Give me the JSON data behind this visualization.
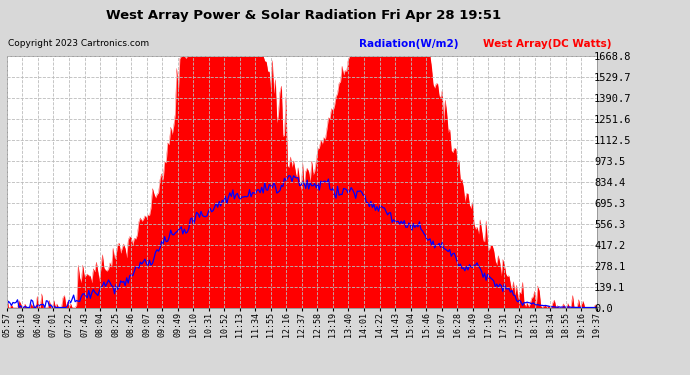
{
  "title": "West Array Power & Solar Radiation Fri Apr 28 19:51",
  "copyright": "Copyright 2023 Cartronics.com",
  "legend_radiation": "Radiation(W/m2)",
  "legend_west": "West Array(DC Watts)",
  "yticks": [
    0.0,
    139.1,
    278.1,
    417.2,
    556.3,
    695.3,
    834.4,
    973.5,
    1112.5,
    1251.6,
    1390.7,
    1529.7,
    1668.8
  ],
  "ymax": 1668.8,
  "ymin": 0.0,
  "bg_color": "#d8d8d8",
  "plot_bg_color": "#ffffff",
  "fill_color": "#ff0000",
  "line_color": "#0000ff",
  "grid_color": "#bbbbbb",
  "title_color": "#000000",
  "copyright_color": "#000000",
  "xtick_labels": [
    "05:57",
    "06:19",
    "06:40",
    "07:01",
    "07:22",
    "07:43",
    "08:04",
    "08:25",
    "08:46",
    "09:07",
    "09:28",
    "09:49",
    "10:10",
    "10:31",
    "10:52",
    "11:13",
    "11:34",
    "11:55",
    "12:16",
    "12:37",
    "12:58",
    "13:19",
    "13:40",
    "14:01",
    "14:22",
    "14:43",
    "15:04",
    "15:46",
    "16:07",
    "16:28",
    "16:49",
    "17:10",
    "17:31",
    "17:52",
    "18:13",
    "18:34",
    "18:55",
    "19:16",
    "19:37"
  ],
  "n_points": 390
}
